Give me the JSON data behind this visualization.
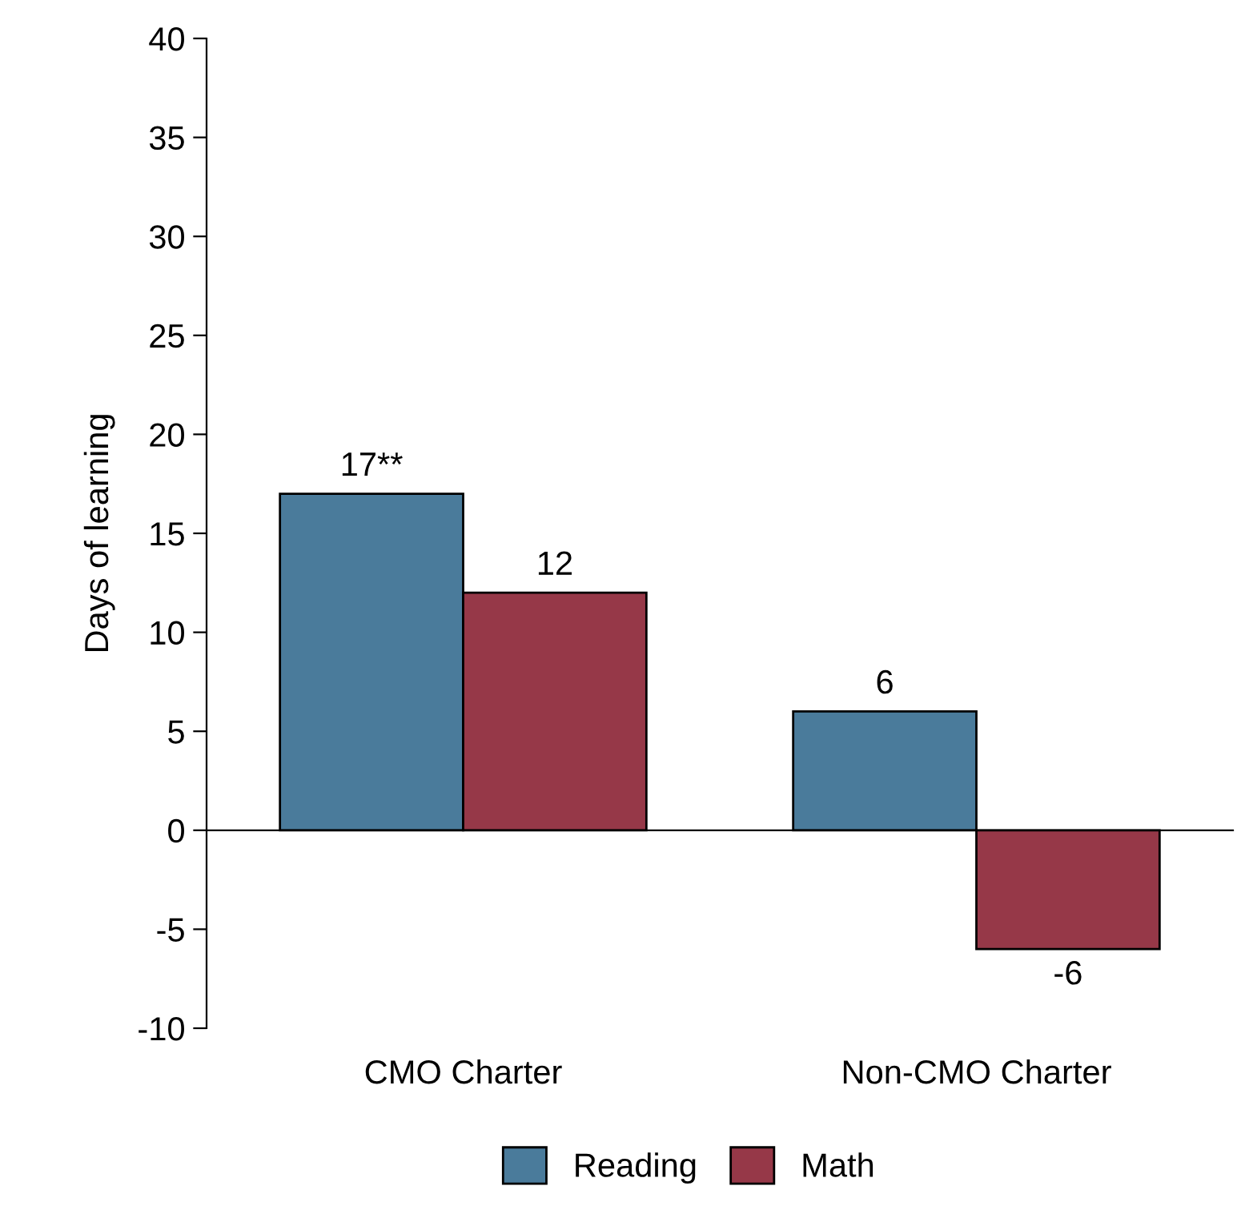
{
  "chart_data": {
    "type": "bar",
    "ylabel": "Days of learning",
    "categories": [
      "CMO Charter",
      "Non-CMO Charter"
    ],
    "series": [
      {
        "name": "Reading",
        "color": "#4a7b9b",
        "values": [
          17,
          6
        ],
        "value_labels": [
          "17**",
          "6"
        ]
      },
      {
        "name": "Math",
        "color": "#963848",
        "values": [
          12,
          -6
        ],
        "value_labels": [
          "12",
          "-6"
        ]
      }
    ],
    "ylim": [
      -10,
      40
    ],
    "yticks": [
      -10,
      -5,
      0,
      5,
      10,
      15,
      20,
      25,
      30,
      35,
      40
    ],
    "legend": "bottom"
  }
}
